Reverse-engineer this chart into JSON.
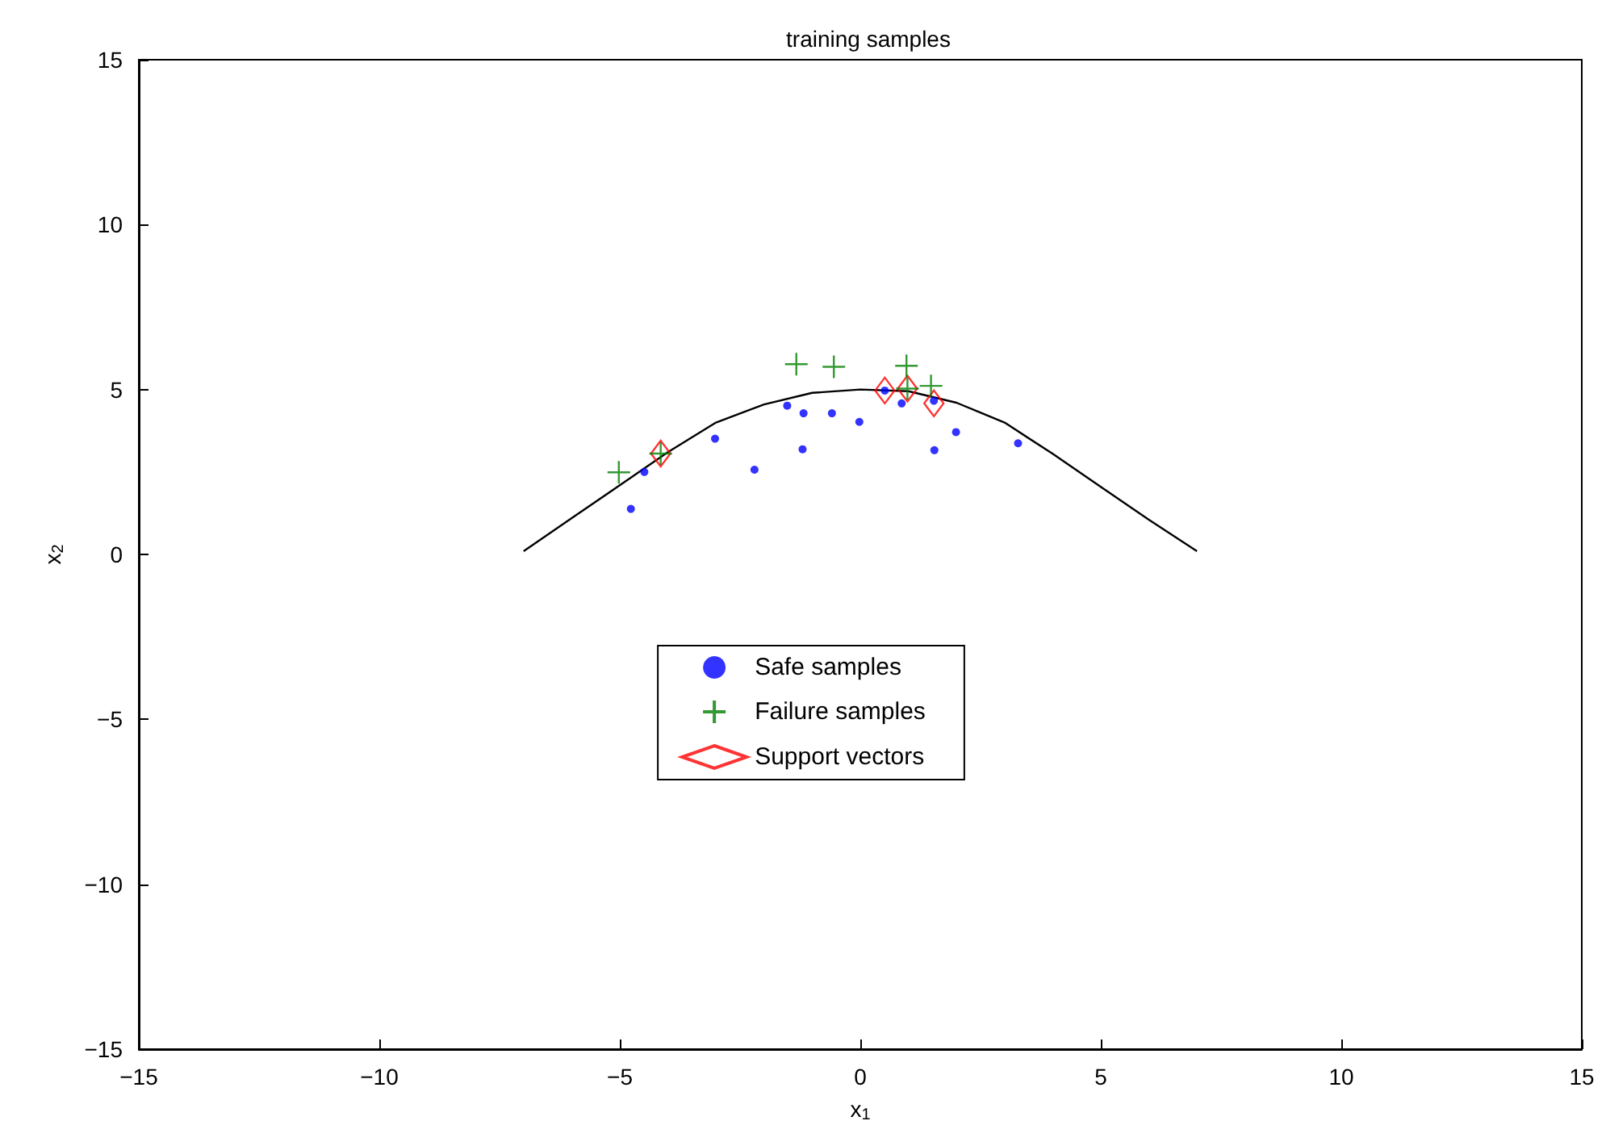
{
  "chart_data": {
    "type": "scatter",
    "title": "training samples",
    "xlabel": "x$_{1}$",
    "ylabel": "x$_{2}$",
    "xlim": [
      -15,
      15
    ],
    "ylim": [
      -15,
      15
    ],
    "xticks": [
      -15,
      -10,
      -5,
      0,
      5,
      10,
      15
    ],
    "yticks": [
      -15,
      -10,
      -5,
      0,
      5,
      10,
      15
    ],
    "grid": false,
    "legend": "center",
    "series": [
      {
        "name": "Safe samples",
        "color": "#0000ff",
        "marker": "circle",
        "x": [
          -4.77,
          -4.49,
          -3.02,
          -2.2,
          -1.52,
          -1.18,
          -1.2,
          -0.59,
          -0.02,
          0.51,
          0.86,
          1.53,
          1.54,
          1.99,
          3.28
        ],
        "values": [
          1.38,
          2.5,
          3.51,
          2.57,
          4.51,
          4.28,
          3.19,
          4.28,
          4.02,
          4.97,
          4.58,
          4.66,
          3.16,
          3.71,
          3.37
        ]
      },
      {
        "name": "Failure samples",
        "color": "#008000",
        "marker": "cross",
        "x": [
          -5.02,
          -4.15,
          -1.33,
          -0.55,
          0.96,
          0.98,
          1.47
        ],
        "values": [
          2.49,
          3.06,
          5.77,
          5.69,
          5.72,
          5.03,
          5.11
        ]
      },
      {
        "name": "Support vectors",
        "color": "#ff0000",
        "marker": "diamond",
        "x": [
          -4.15,
          0.51,
          0.98,
          1.53
        ],
        "values": [
          3.06,
          4.97,
          5.03,
          4.58
        ]
      },
      {
        "type": "line",
        "color": "#000000",
        "marker": "none",
        "line_style": "solid",
        "x": [
          -7,
          -6,
          -5,
          -4,
          -3,
          -2,
          -1,
          0,
          1,
          2,
          3,
          4,
          5,
          6,
          7
        ],
        "values": [
          0.1,
          1.1,
          2.1,
          3.1,
          4.0,
          4.55,
          4.9,
          5.0,
          4.95,
          4.6,
          4.0,
          3.05,
          2.05,
          1.05,
          0.1
        ]
      }
    ]
  }
}
